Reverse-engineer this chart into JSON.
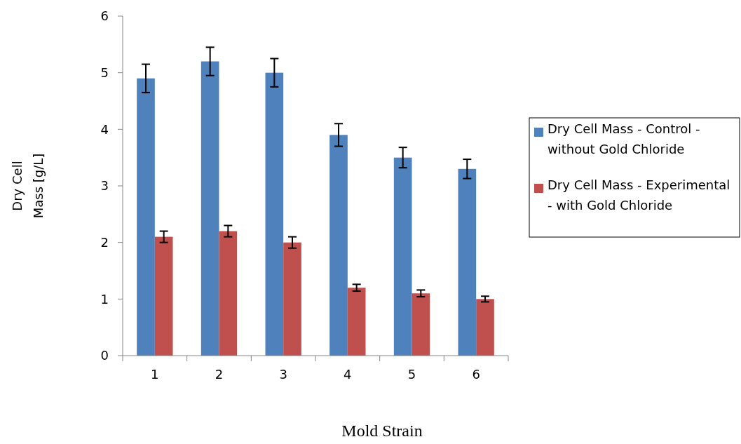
{
  "chart_data": {
    "type": "bar",
    "xlabel": "Mold Strain",
    "ylabel": "Dry Cell Mass [g/L]",
    "categories": [
      "1",
      "2",
      "3",
      "4",
      "5",
      "6"
    ],
    "series": [
      {
        "name": "Dry Cell Mass - Control - without Gold Chloride",
        "color": "#4f81bd",
        "values": [
          4.9,
          5.2,
          5.0,
          3.9,
          3.5,
          3.3
        ],
        "errors": [
          0.25,
          0.25,
          0.25,
          0.2,
          0.18,
          0.17
        ]
      },
      {
        "name": "Dry Cell Mass - Experimental - with Gold Chloride",
        "color": "#c0504d",
        "values": [
          2.1,
          2.2,
          2.0,
          1.2,
          1.1,
          1.0
        ],
        "errors": [
          0.1,
          0.1,
          0.1,
          0.06,
          0.06,
          0.05
        ]
      }
    ],
    "ylim": [
      0,
      6
    ],
    "yticks": [
      0,
      1,
      2,
      3,
      4,
      5,
      6
    ],
    "grid": false,
    "legend": "right"
  }
}
